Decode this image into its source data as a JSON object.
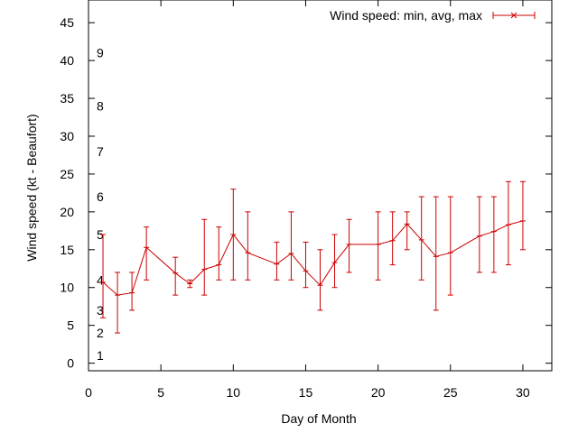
{
  "chart_data": {
    "type": "line",
    "title": "",
    "xlabel": "Day of Month",
    "ylabel": "Wind speed (kt - Beaufort)",
    "xlim": [
      0,
      32
    ],
    "ylim": [
      -1,
      48
    ],
    "xticks": [
      0,
      5,
      10,
      15,
      20,
      25,
      30
    ],
    "yticks": [
      0,
      5,
      10,
      15,
      20,
      25,
      30,
      35,
      40,
      45
    ],
    "grid": false,
    "legend_position": "top-right",
    "beaufort_labels": [
      {
        "label": "1",
        "y": 1
      },
      {
        "label": "2",
        "y": 4
      },
      {
        "label": "3",
        "y": 7
      },
      {
        "label": "4",
        "y": 11
      },
      {
        "label": "5",
        "y": 17
      },
      {
        "label": "6",
        "y": 22
      },
      {
        "label": "7",
        "y": 28
      },
      {
        "label": "8",
        "y": 34
      },
      {
        "label": "9",
        "y": 41
      }
    ],
    "series": [
      {
        "name": "Wind speed: min, avg, max",
        "color": "#cc0000",
        "x": [
          1,
          2,
          3,
          4,
          6,
          7,
          8,
          9,
          10,
          11,
          13,
          14,
          15,
          16,
          17,
          18,
          20,
          21,
          22,
          23,
          24,
          25,
          27,
          28,
          29,
          30
        ],
        "avg": [
          10.7,
          9.0,
          9.3,
          15.3,
          11.9,
          10.5,
          12.4,
          13.0,
          17.0,
          14.6,
          13.1,
          14.5,
          12.2,
          10.3,
          13.3,
          15.7,
          15.7,
          16.2,
          18.4,
          16.3,
          14.1,
          14.6,
          16.8,
          17.4,
          18.3,
          18.8
        ],
        "min": [
          6,
          4,
          7,
          11,
          9,
          10,
          9,
          11,
          11,
          11,
          11,
          11,
          10,
          7,
          10,
          12,
          11,
          13,
          15,
          11,
          7,
          9,
          12,
          12,
          13,
          15
        ],
        "max": [
          17,
          12,
          12,
          18,
          14,
          11,
          19,
          18,
          23,
          20,
          16,
          20,
          16,
          15,
          17,
          19,
          20,
          20,
          20,
          22,
          22,
          22,
          22,
          22,
          24,
          24
        ]
      }
    ]
  }
}
